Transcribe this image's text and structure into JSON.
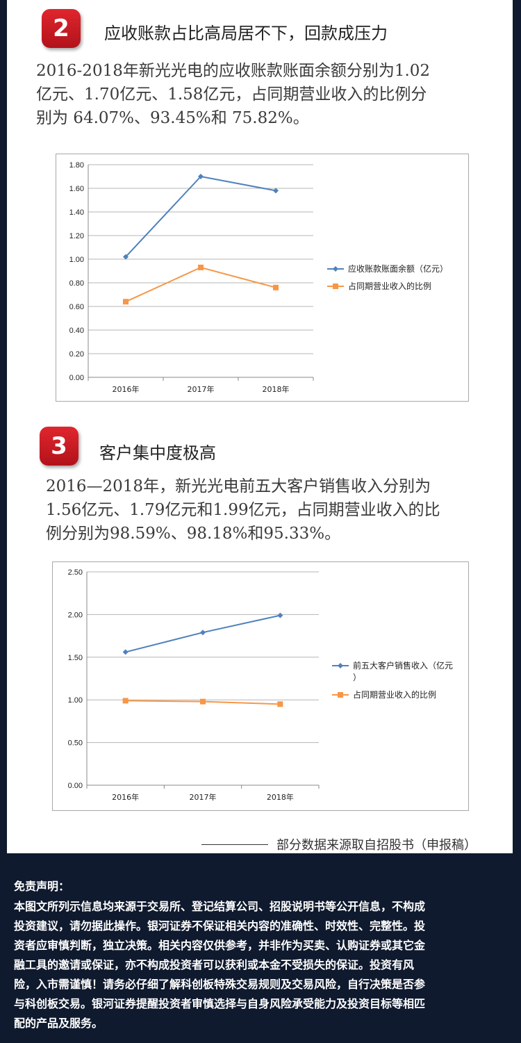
{
  "section2": {
    "badge": "2",
    "heading": "应收账款占比高局居不下，回款成压力",
    "para_lines": [
      "2016-2018年新光光电的应收账款账面余额分别为1.02",
      "亿元、1.70亿元、1.58亿元，占同期营业收入的比例分",
      "别为 64.07%、93.45%和 75.82%。"
    ]
  },
  "section3": {
    "badge": "3",
    "heading": "客户集中度极高",
    "para_lines": [
      "2016—2018年，新光光电前五大客户销售收入分别为",
      "1.56亿元、1.79亿元和1.99亿元，占同期营业收入的比",
      "例分别为98.59%、98.18%和95.33%。"
    ]
  },
  "chart_data": [
    {
      "type": "line",
      "categories": [
        "2016年",
        "2017年",
        "2018年"
      ],
      "series": [
        {
          "name": "应收账款账面余额（亿元）",
          "values": [
            1.02,
            1.7,
            1.58
          ],
          "color": "#4f81bd",
          "marker": "diamond"
        },
        {
          "name": "占同期营业收入的比例",
          "values": [
            0.64,
            0.93,
            0.76
          ],
          "color": "#f79646",
          "marker": "square"
        }
      ],
      "yticks": [
        "0.00",
        "0.20",
        "0.40",
        "0.60",
        "0.80",
        "1.00",
        "1.20",
        "1.40",
        "1.60",
        "1.80"
      ],
      "ylim": [
        0,
        1.8
      ],
      "grid": true,
      "legend": "right"
    },
    {
      "type": "line",
      "categories": [
        "2016年",
        "2017年",
        "2018年"
      ],
      "series": [
        {
          "name": "前五大客户销售收入（亿元）",
          "values": [
            1.56,
            1.79,
            1.99
          ],
          "color": "#4f81bd",
          "marker": "diamond"
        },
        {
          "name": "占同期营业收入的比例",
          "values": [
            0.99,
            0.98,
            0.95
          ],
          "color": "#f79646",
          "marker": "square"
        }
      ],
      "yticks": [
        "0.00",
        "0.50",
        "1.00",
        "1.50",
        "2.00",
        "2.50"
      ],
      "ylim": [
        0,
        2.5
      ],
      "grid": true,
      "legend": "right"
    }
  ],
  "source_note": "部分数据来源取自招股书（申报稿）",
  "disclaimer": {
    "title": "免责声明：",
    "body_lines": [
      "本图文所列示信息均来源于交易所、登记结算公司、招股说明书等公开信息，不构成",
      "投资建议，请勿据此操作。银河证券不保证相关内容的准确性、时效性、完整性。投",
      "资者应审慎判断，独立决策。相关内容仅供参考，并非作为买卖、认购证券或其它金",
      "融工具的邀请或保证，亦不构成投资者可以获利或本金不受损失的保证。投资有风",
      "险，入市需谨慎！请务必仔细了解科创板特殊交易规则及交易风险，自行决策是否参",
      "与科创板交易。银河证券提醒投资者审慎选择与自身风险承受能力及投资目标等相匹",
      "配的产品及服务。"
    ]
  }
}
